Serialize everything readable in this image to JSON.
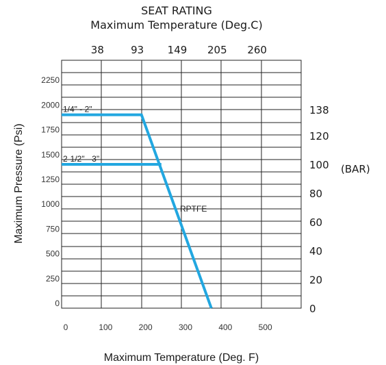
{
  "chart_data": {
    "type": "line",
    "title": "SEAT RATING",
    "subtitle": "Maximum Temperature (Deg.C)",
    "xlabel": "Maximum Temperature (Deg. F)",
    "ylabel": "Maximum Pressure (Psi)",
    "y2_unit": "(BAR)",
    "xlim": [
      0,
      600
    ],
    "ylim": [
      0,
      2500
    ],
    "x_ticks": [
      0,
      100,
      200,
      300,
      400,
      500
    ],
    "y_ticks": [
      0,
      250,
      500,
      750,
      1000,
      1250,
      1500,
      1750,
      2000,
      2250
    ],
    "top_axis_ticks": [
      {
        "label": "38",
        "x_degF": 100
      },
      {
        "label": "93",
        "x_degF": 200
      },
      {
        "label": "149",
        "x_degF": 300
      },
      {
        "label": "205",
        "x_degF": 400
      },
      {
        "label": "260",
        "x_degF": 500
      }
    ],
    "right_axis_ticks": [
      {
        "label": "138",
        "bar": 138
      },
      {
        "label": "120",
        "bar": 120
      },
      {
        "label": "100",
        "bar": 100
      },
      {
        "label": "80",
        "bar": 80
      },
      {
        "label": "60",
        "bar": 60
      },
      {
        "label": "40",
        "bar": 40
      },
      {
        "label": "20",
        "bar": 20
      },
      {
        "label": "0",
        "bar": 0
      }
    ],
    "grid": true,
    "series": [
      {
        "name": "1/4\" - 2\"",
        "color": "#22a7e0",
        "x": [
          0,
          200,
          375
        ],
        "y": [
          1950,
          1950,
          0
        ]
      },
      {
        "name": "2-1/2\" - 3\"",
        "color": "#22a7e0",
        "x": [
          0,
          250
        ],
        "y": [
          1450,
          1450
        ]
      }
    ],
    "annotations": [
      {
        "text": "RPTFE",
        "x": 300,
        "y": 1000
      }
    ]
  }
}
